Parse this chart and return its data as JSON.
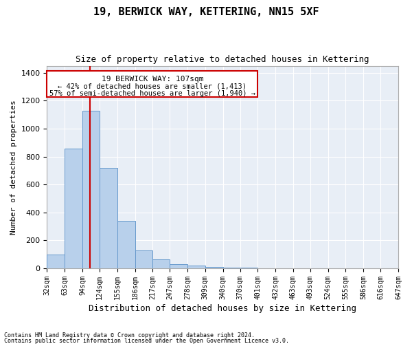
{
  "title1": "19, BERWICK WAY, KETTERING, NN15 5XF",
  "title2": "Size of property relative to detached houses in Kettering",
  "xlabel": "Distribution of detached houses by size in Kettering",
  "ylabel": "Number of detached properties",
  "footnote1": "Contains HM Land Registry data © Crown copyright and database right 2024.",
  "footnote2": "Contains public sector information licensed under the Open Government Licence v3.0.",
  "annotation_title": "19 BERWICK WAY: 107sqm",
  "annotation_line1": "← 42% of detached houses are smaller (1,413)",
  "annotation_line2": "57% of semi-detached houses are larger (1,940) →",
  "property_size": 107,
  "bin_edges": [
    32,
    63,
    94,
    124,
    155,
    186,
    217,
    247,
    278,
    309,
    340,
    370,
    401,
    432,
    463,
    493,
    524,
    555,
    586,
    616,
    647
  ],
  "bar_heights": [
    100,
    855,
    1130,
    720,
    340,
    130,
    65,
    30,
    20,
    10,
    5,
    3,
    2,
    1,
    1,
    0,
    1,
    0,
    0,
    0
  ],
  "bar_color": "#b8d0eb",
  "bar_edge_color": "#6699cc",
  "line_color": "#cc0000",
  "annotation_box_color": "#cc0000",
  "bg_color": "#e8eef6",
  "ylim": [
    0,
    1450
  ],
  "yticks": [
    0,
    200,
    400,
    600,
    800,
    1000,
    1200,
    1400
  ],
  "grid_color": "#d0d8e8",
  "title_fontsize": 11,
  "subtitle_fontsize": 9,
  "tick_fontsize": 7,
  "ylabel_fontsize": 8,
  "xlabel_fontsize": 9
}
